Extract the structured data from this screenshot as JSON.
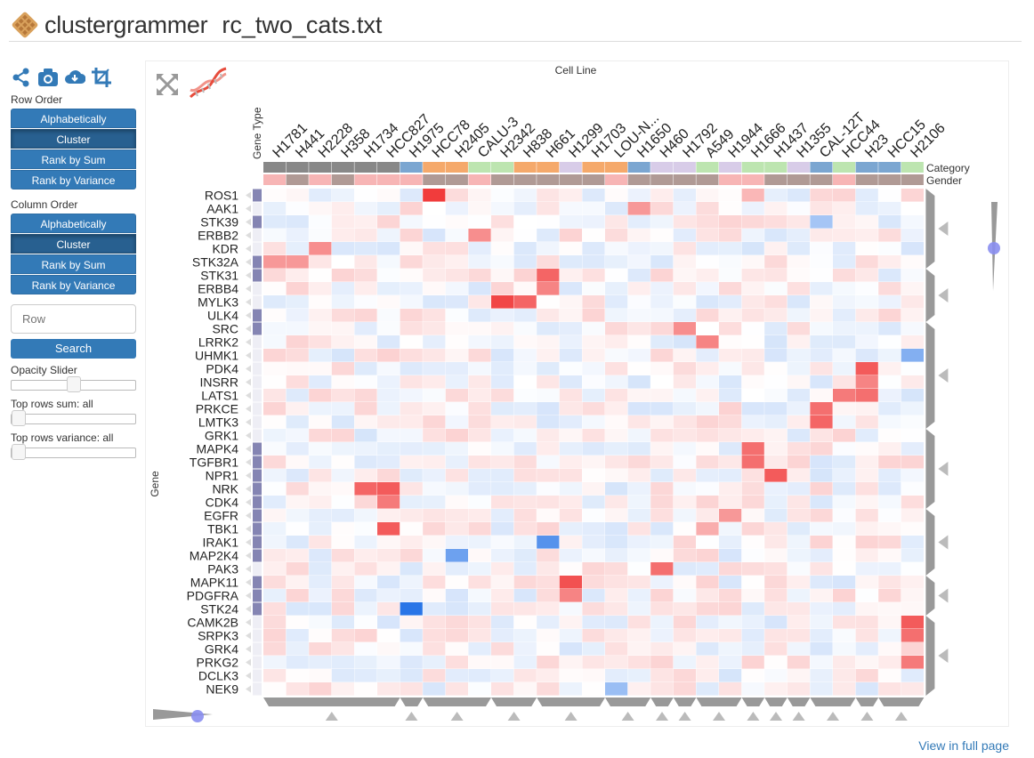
{
  "header": {
    "brand": "clustergrammer",
    "filename": "rc_two_cats.txt"
  },
  "sidebar": {
    "tools": [
      "share-icon",
      "camera-icon",
      "download-cloud-icon",
      "crop-icon"
    ],
    "row_order_label": "Row Order",
    "row_order": [
      "Alphabetically",
      "Cluster",
      "Rank by Sum",
      "Rank by Variance"
    ],
    "row_order_active": 1,
    "col_order_label": "Column Order",
    "col_order": [
      "Alphabetically",
      "Cluster",
      "Rank by Sum",
      "Rank by Variance"
    ],
    "col_order_active": 1,
    "search_placeholder": "Row",
    "search_label": "Search",
    "opacity_label": "Opacity Slider",
    "opacity_value": 0.5,
    "top_sum_label": "Top rows sum: all",
    "top_sum_value": 0,
    "top_var_label": "Top rows variance: all",
    "top_var_value": 0
  },
  "viz": {
    "col_title": "Cell Line",
    "row_title": "Gene",
    "row_cat_title": "Gene Type",
    "col_cat_titles": [
      "Category",
      "Gender"
    ],
    "toolbar_icons": [
      "expand-icon",
      "dna-icon"
    ],
    "columns": [
      "H1781",
      "H441",
      "H2228",
      "H358",
      "H1734",
      "HCC827",
      "H1975",
      "HCC78",
      "H2405",
      "CALU-3",
      "H2342",
      "H838",
      "H661",
      "H1299",
      "H1703",
      "LOU-N...",
      "H1650",
      "H460",
      "H1792",
      "A549",
      "H1944",
      "H1666",
      "H1437",
      "H1355",
      "CAL-12T",
      "HCC44",
      "H23",
      "HCC15",
      "H2106"
    ],
    "col_category_colors": [
      "#888",
      "#888",
      "#888",
      "#888",
      "#888",
      "#888",
      "#7ba6d1",
      "#f5a96b",
      "#f5a96b",
      "#bde5b0",
      "#bde5b0",
      "#f5a96b",
      "#f5a96b",
      "#d8cce8",
      "#f5a96b",
      "#f5a96b",
      "#7ba6d1",
      "#d8cce8",
      "#d8cce8",
      "#bde5b0",
      "#d8cce8",
      "#bde5b0",
      "#bde5b0",
      "#d8cce8",
      "#7ba6d1",
      "#bde5b0",
      "#7ba6d1",
      "#7ba6d1",
      "#bde5b0"
    ],
    "col_gender_colors": [
      "#f7b5b5",
      "#b09a95",
      "#f7b5b5",
      "#b09a95",
      "#f7b5b5",
      "#f7b5b5",
      "#f7b5b5",
      "#b09a95",
      "#b09a95",
      "#f7b5b5",
      "#b09a95",
      "#b09a95",
      "#b09a95",
      "#b09a95",
      "#b09a95",
      "#f7b5b5",
      "#b09a95",
      "#b09a95",
      "#b09a95",
      "#b09a95",
      "#f7b5b5",
      "#f7b5b5",
      "#b09a95",
      "#b09a95",
      "#b09a95",
      "#f7b5b5",
      "#b09a95",
      "#b09a95",
      "#b09a95"
    ],
    "rows": [
      "ROS1",
      "AAK1",
      "STK39",
      "ERBB2",
      "KDR",
      "STK32A",
      "STK31",
      "ERBB4",
      "MYLK3",
      "ULK4",
      "SRC",
      "LRRK2",
      "UHMK1",
      "PDK4",
      "INSRR",
      "LATS1",
      "PRKCE",
      "LMTK3",
      "GRK1",
      "MAPK4",
      "TGFBR1",
      "NPR1",
      "NRK",
      "CDK4",
      "EGFR",
      "TBK1",
      "IRAK1",
      "MAP2K4",
      "PAK3",
      "MAPK11",
      "PDGFRA",
      "STK24",
      "CAMK2B",
      "SRPK3",
      "GRK4",
      "PRKG2",
      "DCLK3",
      "NEK9"
    ],
    "row_category": [
      1,
      0,
      1,
      0,
      0,
      1,
      1,
      0,
      0,
      1,
      1,
      0,
      0,
      0,
      0,
      0,
      0,
      0,
      0,
      1,
      1,
      1,
      1,
      1,
      1,
      1,
      1,
      1,
      0,
      1,
      1,
      1,
      0,
      0,
      0,
      0,
      0,
      0
    ],
    "row_dendro_groups": [
      [
        0,
        5
      ],
      [
        6,
        9
      ],
      [
        10,
        17
      ],
      [
        18,
        23
      ],
      [
        24,
        28
      ],
      [
        29,
        31
      ],
      [
        32,
        37
      ]
    ],
    "col_dendro_groups": [
      [
        0,
        5
      ],
      [
        6,
        6
      ],
      [
        7,
        9
      ],
      [
        10,
        11
      ],
      [
        12,
        14
      ],
      [
        15,
        16
      ],
      [
        17,
        17
      ],
      [
        18,
        18
      ],
      [
        19,
        20
      ],
      [
        21,
        21
      ],
      [
        22,
        22
      ],
      [
        23,
        23
      ],
      [
        24,
        25
      ],
      [
        26,
        26
      ],
      [
        27,
        28
      ]
    ]
  },
  "footer_link": "View in full page"
}
